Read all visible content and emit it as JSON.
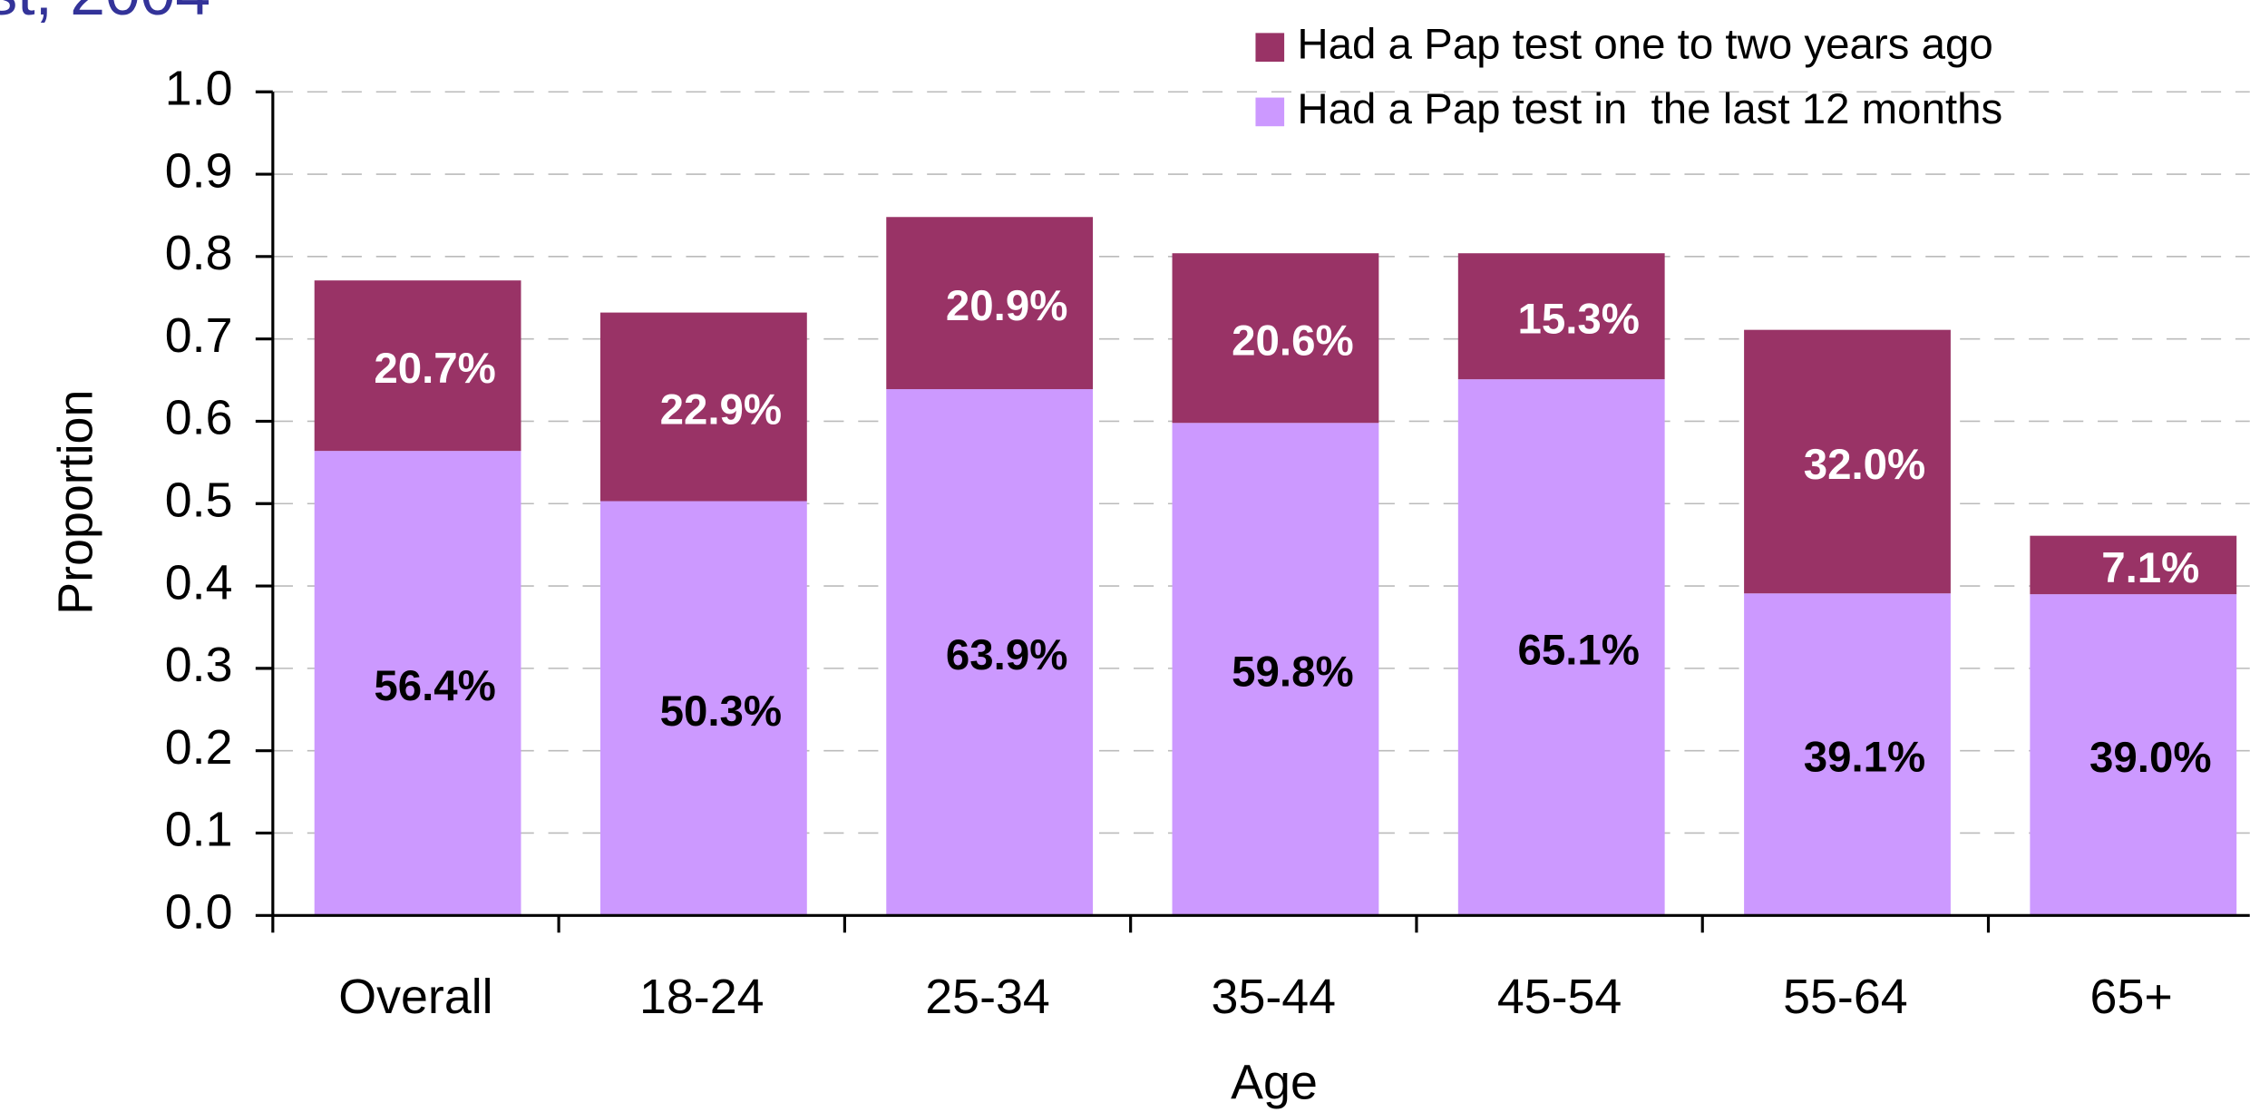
{
  "chart_data": {
    "type": "stacked_bar",
    "title": "st, 2004",
    "xlabel": "Age",
    "ylabel": "Proportion",
    "categories": [
      "Overall",
      "18-24",
      "25-34",
      "35-44",
      "45-54",
      "55-64",
      "65+"
    ],
    "series": [
      {
        "name": "Had a Pap test in  the last 12 months",
        "color": "#cc99ff",
        "values": [
          0.564,
          0.503,
          0.639,
          0.598,
          0.651,
          0.391,
          0.39
        ],
        "value_labels": [
          "56.4%",
          "50.3%",
          "63.9%",
          "59.8%",
          "65.1%",
          "39.1%",
          "39.0%"
        ]
      },
      {
        "name": "Had a Pap test one to two years ago",
        "color": "#993366",
        "values": [
          0.207,
          0.229,
          0.209,
          0.206,
          0.153,
          0.32,
          0.071
        ],
        "value_labels": [
          "20.7%",
          "22.9%",
          "20.9%",
          "20.6%",
          "15.3%",
          "32.0%",
          "7.1%"
        ]
      }
    ],
    "ylim": [
      0,
      1
    ],
    "yticks": [
      {
        "value": 0,
        "label": "0.0"
      },
      0.1,
      0.2,
      0.3,
      0.4,
      0.5,
      0.6,
      0.7,
      0.8,
      0.9,
      {
        "value": 1,
        "label": "1.0"
      }
    ],
    "grid": true,
    "legend": "top-right"
  }
}
